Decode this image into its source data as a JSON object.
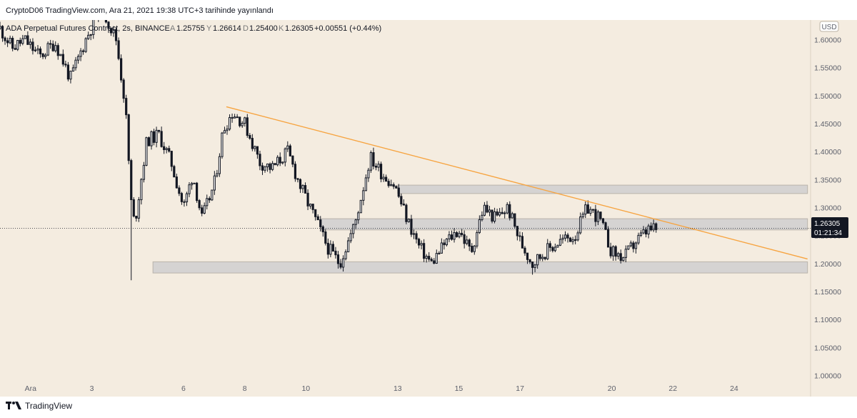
{
  "header": {
    "published": "CryptoD06 TradingView.com, Ara 21, 2021 19:38 UTC+3 tarihinde yayınlandı"
  },
  "legend": {
    "symbol": "ADA Perpetual Futures Contract, 2s, BINANCE",
    "o_label": "A",
    "o": "1.25755",
    "h_label": "Y",
    "h": "1.26614",
    "l_label": "D",
    "l": "1.25400",
    "c_label": "K",
    "c": "1.26305",
    "change": "+0.00551 (+0.44%)"
  },
  "price_axis": {
    "currency": "USD",
    "last_price": "1.26305",
    "countdown": "01:21:34"
  },
  "footer": {
    "brand": "TradingView"
  },
  "colors": {
    "background": "#f4ece0",
    "candle": "#131722",
    "trendline": "#f7a440",
    "zone_fill": "#cfcfcf",
    "price_badge": "#131722"
  },
  "chart_data": {
    "type": "candlestick",
    "title": "ADA Perpetual Futures Contract, 2s, BINANCE",
    "ylim": [
      0.975,
      1.635
    ],
    "y_ticks": [
      "1.60000",
      "1.55000",
      "1.50000",
      "1.45000",
      "1.40000",
      "1.35000",
      "1.30000",
      "1.25000",
      "1.20000",
      "1.15000",
      "1.10000",
      "1.05000",
      "1.00000"
    ],
    "y_tick_values": [
      1.6,
      1.55,
      1.5,
      1.45,
      1.4,
      1.35,
      1.3,
      1.25,
      1.2,
      1.15,
      1.1,
      1.05,
      1.0
    ],
    "x_ticks": [
      "Ara",
      "3",
      "6",
      "8",
      "10",
      "13",
      "15",
      "17",
      "20",
      "22",
      "24"
    ],
    "x_tick_days": [
      1.0,
      3.0,
      6.0,
      8.0,
      10.0,
      13.0,
      15.0,
      17.0,
      20.0,
      22.0,
      24.0
    ],
    "x_range_days": [
      0.0,
      26.5
    ],
    "last_price": 1.26305,
    "trendline": {
      "from": {
        "day": 7.4,
        "price": 1.48
      },
      "to": {
        "day": 26.4,
        "price": 1.208
      }
    },
    "zones": [
      {
        "from_day": 13.0,
        "to_day": 26.4,
        "low": 1.325,
        "high": 1.34
      },
      {
        "from_day": 10.5,
        "to_day": 26.4,
        "low": 1.26,
        "high": 1.28
      },
      {
        "from_day": 5.0,
        "to_day": 26.4,
        "low": 1.183,
        "high": 1.203
      }
    ],
    "path": [
      [
        0.0,
        1.62
      ],
      [
        0.4,
        1.585
      ],
      [
        0.8,
        1.6
      ],
      [
        1.3,
        1.57
      ],
      [
        1.8,
        1.595
      ],
      [
        2.3,
        1.53
      ],
      [
        2.8,
        1.6
      ],
      [
        3.3,
        1.66
      ],
      [
        3.8,
        1.6
      ],
      [
        4.1,
        1.48
      ],
      [
        4.3,
        1.3
      ],
      [
        4.4,
        1.27
      ],
      [
        4.8,
        1.42
      ],
      [
        5.2,
        1.43
      ],
      [
        5.6,
        1.38
      ],
      [
        6.0,
        1.3
      ],
      [
        6.3,
        1.36
      ],
      [
        6.6,
        1.28
      ],
      [
        7.0,
        1.34
      ],
      [
        7.3,
        1.44
      ],
      [
        7.6,
        1.47
      ],
      [
        8.0,
        1.45
      ],
      [
        8.5,
        1.38
      ],
      [
        8.9,
        1.37
      ],
      [
        9.4,
        1.4
      ],
      [
        9.8,
        1.34
      ],
      [
        10.3,
        1.28
      ],
      [
        10.7,
        1.23
      ],
      [
        11.1,
        1.2
      ],
      [
        11.6,
        1.27
      ],
      [
        12.1,
        1.39
      ],
      [
        12.5,
        1.36
      ],
      [
        12.9,
        1.34
      ],
      [
        13.3,
        1.28
      ],
      [
        13.7,
        1.23
      ],
      [
        14.1,
        1.2
      ],
      [
        14.6,
        1.24
      ],
      [
        15.0,
        1.26
      ],
      [
        15.4,
        1.22
      ],
      [
        15.8,
        1.3
      ],
      [
        16.2,
        1.28
      ],
      [
        16.6,
        1.3
      ],
      [
        17.0,
        1.24
      ],
      [
        17.4,
        1.2
      ],
      [
        17.8,
        1.22
      ],
      [
        18.3,
        1.24
      ],
      [
        18.8,
        1.25
      ],
      [
        19.2,
        1.3
      ],
      [
        19.6,
        1.28
      ],
      [
        20.0,
        1.22
      ],
      [
        20.4,
        1.21
      ],
      [
        20.8,
        1.24
      ],
      [
        21.2,
        1.26
      ],
      [
        21.5,
        1.26
      ]
    ],
    "lows": [
      {
        "day": 4.3,
        "price": 1.17
      },
      {
        "day": 11.1,
        "price": 1.19
      },
      {
        "day": 17.4,
        "price": 1.18
      }
    ]
  }
}
